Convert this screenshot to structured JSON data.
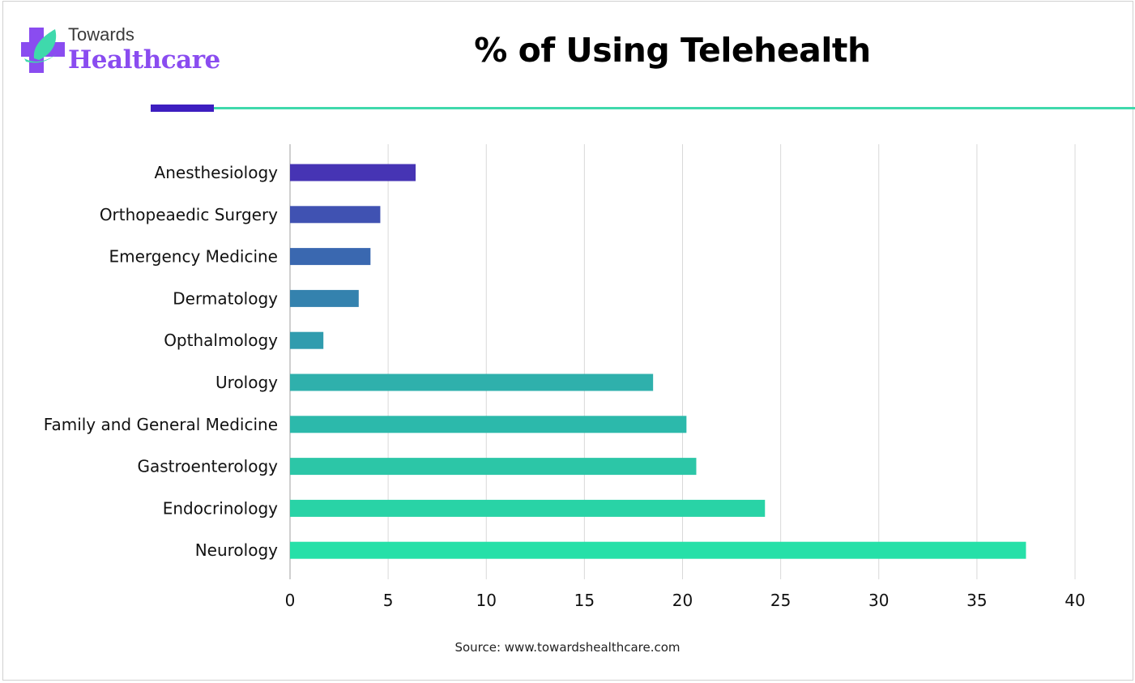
{
  "brand": {
    "line1": "Towards",
    "line2": "Healthcare",
    "icon": "plus-leaf-icon",
    "colors": {
      "purple": "#8a4cf0",
      "teal": "#3fd9ac",
      "dark": "#3d1ec0"
    }
  },
  "source": "Source: www.towardshealthcare.com",
  "chart_data": {
    "type": "bar",
    "orientation": "horizontal",
    "title": "% of Using Telehealth",
    "xlabel": "",
    "ylabel": "",
    "categories": [
      "Anesthesiology",
      "Orthopeaedic Surgery",
      "Emergency Medicine",
      "Dermatology",
      "Opthalmology",
      "Urology",
      "Family and General Medicine",
      "Gastroenterology",
      "Endocrinology",
      "Neurology"
    ],
    "values": [
      6.4,
      4.6,
      4.1,
      3.5,
      1.7,
      18.5,
      20.2,
      20.7,
      24.2,
      37.5
    ],
    "colors": [
      "#4634b4",
      "#4052b2",
      "#3a68b0",
      "#3482ae",
      "#309cae",
      "#2fb0ac",
      "#2cb9ab",
      "#2cc6a7",
      "#29d3a6",
      "#26e0a8"
    ],
    "xlim": [
      0,
      40
    ],
    "xticks": [
      0,
      5,
      10,
      15,
      20,
      25,
      30,
      35,
      40
    ],
    "grid": true,
    "legend": "none"
  }
}
